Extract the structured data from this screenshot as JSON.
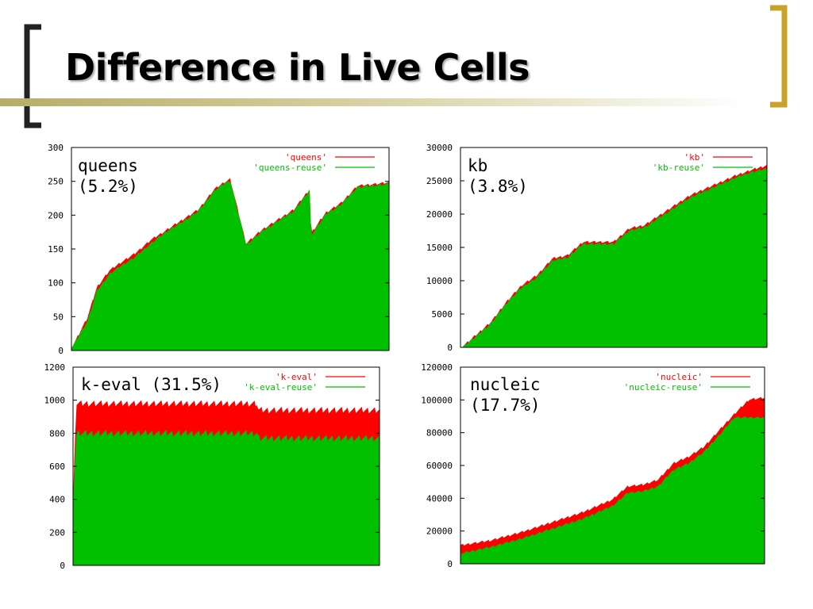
{
  "slide": {
    "title": "Difference in Live Cells",
    "colors": {
      "bracket_left": "#222222",
      "bracket_right": "#c9a227",
      "title_rule": "#b6ad6b"
    }
  },
  "chart_data": [
    {
      "type": "area",
      "label": "queens",
      "percent": "(5.2%)",
      "ylim": [
        0,
        300
      ],
      "yticks": [
        "300",
        "250",
        "200",
        "150",
        "100",
        "50",
        "0"
      ],
      "grid": false,
      "legend_placement": "top-right",
      "series": [
        {
          "name": "'queens'",
          "color": "#ff0000",
          "x": [
            0,
            5,
            8,
            12,
            15,
            20,
            25,
            30,
            35,
            40,
            45,
            48,
            50,
            55,
            60,
            65,
            70,
            75,
            75.5,
            80,
            85,
            90,
            100
          ],
          "values": [
            5,
            50,
            95,
            120,
            130,
            145,
            165,
            180,
            195,
            210,
            240,
            250,
            255,
            160,
            180,
            195,
            210,
            240,
            175,
            205,
            220,
            245,
            250
          ]
        },
        {
          "name": "'queens-reuse'",
          "color": "#00c000",
          "x": [
            0,
            5,
            8,
            12,
            15,
            20,
            25,
            30,
            35,
            40,
            45,
            48,
            50,
            55,
            60,
            65,
            70,
            75,
            75.5,
            80,
            85,
            90,
            100
          ],
          "values": [
            5,
            45,
            90,
            115,
            125,
            140,
            160,
            178,
            192,
            208,
            238,
            248,
            253,
            158,
            178,
            193,
            208,
            238,
            172,
            203,
            218,
            243,
            248
          ]
        }
      ]
    },
    {
      "type": "area",
      "label": "kb",
      "percent": "(3.8%)",
      "ylim": [
        0,
        30000
      ],
      "yticks": [
        "30000",
        "25000",
        "20000",
        "15000",
        "10000",
        "5000",
        "0"
      ],
      "grid": false,
      "legend_placement": "top-right",
      "series": [
        {
          "name": "'kb'",
          "color": "#ff0000",
          "x": [
            0,
            5,
            10,
            15,
            20,
            25,
            30,
            35,
            40,
            45,
            50,
            55,
            60,
            65,
            70,
            75,
            80,
            85,
            90,
            95,
            100
          ],
          "values": [
            0,
            2000,
            4000,
            7000,
            9500,
            11000,
            13500,
            14000,
            16000,
            16000,
            16000,
            18000,
            18500,
            20000,
            21500,
            23000,
            24000,
            25000,
            26000,
            26800,
            27500
          ]
        },
        {
          "name": "'kb-reuse'",
          "color": "#00c000",
          "x": [
            0,
            5,
            10,
            15,
            20,
            25,
            30,
            35,
            40,
            45,
            50,
            55,
            60,
            65,
            70,
            75,
            80,
            85,
            90,
            95,
            100
          ],
          "values": [
            0,
            1800,
            3800,
            6800,
            9200,
            10700,
            13200,
            13700,
            15700,
            15700,
            15700,
            17700,
            18200,
            19700,
            21200,
            22700,
            23700,
            24700,
            25700,
            26500,
            27000
          ]
        }
      ]
    },
    {
      "type": "area",
      "label": "k-eval",
      "percent": "(31.5%)",
      "ylim": [
        0,
        1200
      ],
      "yticks": [
        "1200",
        "1000",
        "800",
        "600",
        "400",
        "200",
        "0"
      ],
      "grid": false,
      "legend_placement": "top-right",
      "series": [
        {
          "name": "'k-eval'",
          "color": "#ff0000",
          "x": [
            0,
            1,
            2,
            60,
            60.5,
            100
          ],
          "values": [
            400,
            1000,
            1000,
            1000,
            960,
            960
          ]
        },
        {
          "name": "'k-eval-reuse'",
          "color": "#00c000",
          "x": [
            0,
            1,
            2,
            60,
            60.5,
            100
          ],
          "values": [
            400,
            820,
            820,
            820,
            790,
            790
          ]
        }
      ]
    },
    {
      "type": "area",
      "label": "nucleic",
      "percent": "(17.7%)",
      "ylim": [
        0,
        120000
      ],
      "yticks": [
        "120000",
        "100000",
        "80000",
        "60000",
        "40000",
        "20000",
        "0"
      ],
      "grid": false,
      "legend_placement": "top-right",
      "series": [
        {
          "name": "'nucleic'",
          "color": "#ff0000",
          "x": [
            0,
            10,
            20,
            30,
            40,
            50,
            55,
            60,
            65,
            70,
            75,
            80,
            85,
            90,
            95,
            100
          ],
          "values": [
            12000,
            15000,
            20000,
            26000,
            32000,
            40000,
            48000,
            49000,
            52000,
            62000,
            66000,
            72000,
            82000,
            92000,
            101000,
            102000
          ]
        },
        {
          "name": "'nucleic-reuse'",
          "color": "#00c000",
          "x": [
            0,
            10,
            20,
            30,
            40,
            50,
            55,
            60,
            65,
            70,
            75,
            80,
            85,
            90,
            95,
            100
          ],
          "values": [
            7000,
            11000,
            16000,
            22000,
            28000,
            36000,
            44000,
            45000,
            48000,
            58000,
            62000,
            69000,
            79000,
            90000,
            90000,
            90000
          ]
        }
      ]
    }
  ]
}
